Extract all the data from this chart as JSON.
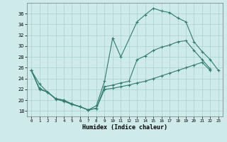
{
  "xlabel": "Humidex (Indice chaleur)",
  "bg_color": "#ceeaea",
  "line_color": "#2e7d6e",
  "grid_color": "#aacfcf",
  "ylim": [
    17,
    38
  ],
  "xlim": [
    -0.5,
    23.5
  ],
  "yticks": [
    18,
    20,
    22,
    24,
    26,
    28,
    30,
    32,
    34,
    36
  ],
  "xticks": [
    0,
    1,
    2,
    3,
    4,
    5,
    6,
    7,
    8,
    9,
    10,
    11,
    12,
    13,
    14,
    15,
    16,
    17,
    18,
    19,
    20,
    21,
    22,
    23
  ],
  "series1_x": [
    0,
    1,
    2,
    3,
    4,
    5,
    6,
    7,
    8,
    9,
    10,
    11,
    13,
    14,
    15,
    16,
    17,
    18,
    19,
    20,
    21,
    22,
    23
  ],
  "series1_y": [
    25.5,
    23.0,
    21.5,
    20.3,
    20.0,
    19.3,
    18.8,
    18.2,
    19.0,
    23.5,
    31.5,
    28.0,
    34.5,
    35.8,
    37.0,
    36.5,
    36.2,
    35.2,
    34.5,
    30.8,
    29.0,
    27.5,
    25.5
  ],
  "series2_x": [
    0,
    1,
    2,
    3,
    4,
    5,
    6,
    7,
    8,
    9,
    10,
    11,
    12,
    13,
    14,
    15,
    16,
    17,
    18,
    19,
    20,
    21,
    22
  ],
  "series2_y": [
    25.5,
    22.2,
    21.5,
    20.2,
    19.8,
    19.2,
    18.8,
    18.2,
    18.5,
    22.0,
    22.2,
    22.5,
    22.8,
    23.2,
    23.5,
    24.0,
    24.5,
    25.0,
    25.5,
    26.0,
    26.5,
    27.0,
    25.5
  ],
  "series3_x": [
    0,
    1,
    2,
    3,
    4,
    5,
    6,
    7,
    8,
    9,
    10,
    11,
    12,
    13,
    14,
    15,
    16,
    17,
    18,
    19,
    20,
    21,
    22
  ],
  "series3_y": [
    25.5,
    22.0,
    21.5,
    20.3,
    20.0,
    19.3,
    18.8,
    18.2,
    18.5,
    22.5,
    22.8,
    23.2,
    23.5,
    27.5,
    28.2,
    29.2,
    29.8,
    30.2,
    30.8,
    31.0,
    29.2,
    27.5,
    25.8
  ]
}
